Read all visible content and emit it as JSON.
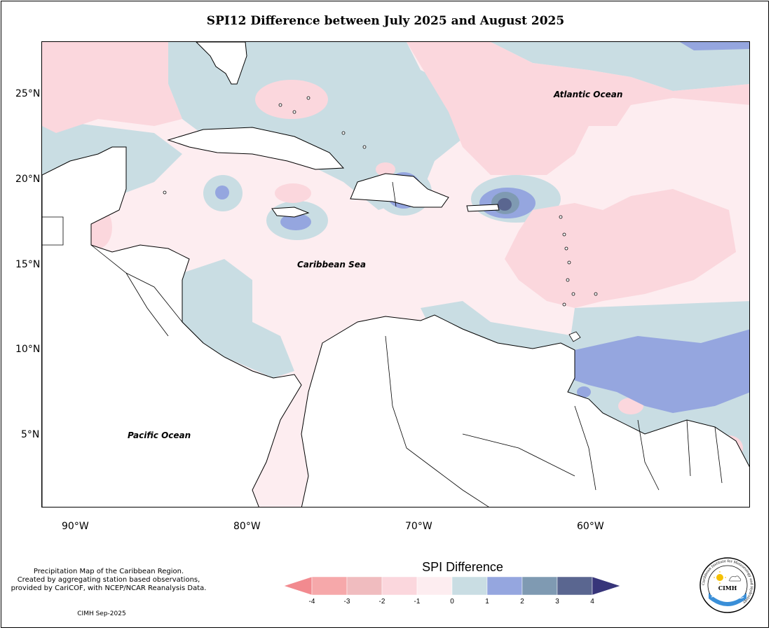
{
  "title": "SPI12 Difference between July 2025 and August 2025",
  "map": {
    "lat_labels": [
      "25°N",
      "20°N",
      "15°N",
      "10°N",
      "5°N"
    ],
    "lon_labels": [
      "90°W",
      "80°W",
      "70°W",
      "60°W"
    ],
    "places": {
      "atlantic": "Atlantic Ocean",
      "caribbean": "Caribbean Sea",
      "pacific": "Pacific Ocean"
    }
  },
  "notes": {
    "line1": "Precipitation Map of the Caribbean Region.",
    "line2": "Created by aggregating station based observations,",
    "line3": "provided by CariCOF, with NCEP/NCAR Reanalysis Data.",
    "credit": "CIMH Sep-2025"
  },
  "legend": {
    "title": "SPI Difference",
    "ticks": [
      "-4",
      "-3",
      "-2",
      "-1",
      "0",
      "1",
      "2",
      "3",
      "4"
    ],
    "colors": [
      "#f28a8f",
      "#f6a8aa",
      "#f0bcbf",
      "#fbd7dd",
      "#fdedf0",
      "#c9dde3",
      "#95a6df",
      "#7f9ab2",
      "#5a6690",
      "#37357a"
    ]
  },
  "logo": {
    "text": "CIMH",
    "ring_text": "Caribbean Institute for Meteorology and Hydrology"
  }
}
